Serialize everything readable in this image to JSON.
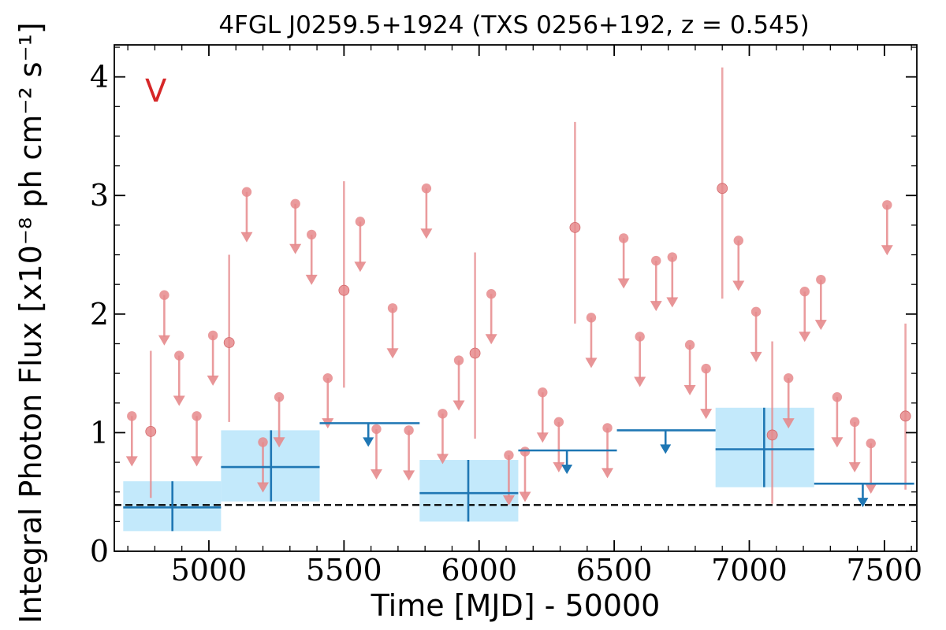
{
  "chart_data": {
    "type": "scatter",
    "title": "4FGL J0259.5+1924 (TXS 0256+192, z = 0.545)",
    "xlabel": "Time [MJD] - 50000",
    "ylabel": "Integral Photon Flux [x10⁻⁸ ph cm⁻² s⁻¹]",
    "panel_label": "V",
    "xlim": [
      4650,
      7620
    ],
    "ylim": [
      0,
      4.27
    ],
    "x_ticks": [
      5000,
      5500,
      6000,
      6500,
      7000,
      7500
    ],
    "y_ticks": [
      0,
      1,
      2,
      3,
      4
    ],
    "x_tick_labels": [
      "5000",
      "5500",
      "6000",
      "6500",
      "7000",
      "7500"
    ],
    "y_tick_labels": [
      "0",
      "1",
      "2",
      "3",
      "4"
    ],
    "reference_line": {
      "y": 0.39,
      "style": "dashed"
    },
    "colors": {
      "short_bins": "#e6898c",
      "long_bins": "#1f77b4",
      "long_bins_fill": "#c3e9fb",
      "panel_label": "#d62728",
      "reference_line": "#000000"
    },
    "short_bin_detections": [
      {
        "x": 4785,
        "y": 1.01,
        "ylo": 0.45,
        "yhi": 1.69
      },
      {
        "x": 5075,
        "y": 1.76,
        "ylo": 1.09,
        "yhi": 2.5
      },
      {
        "x": 5500,
        "y": 2.2,
        "ylo": 1.38,
        "yhi": 3.12
      },
      {
        "x": 5985,
        "y": 1.67,
        "ylo": 0.95,
        "yhi": 2.52
      },
      {
        "x": 6355,
        "y": 2.73,
        "ylo": 1.92,
        "yhi": 3.62
      },
      {
        "x": 6900,
        "y": 3.06,
        "ylo": 2.13,
        "yhi": 4.08
      },
      {
        "x": 7085,
        "y": 0.98,
        "ylo": 0.4,
        "yhi": 1.77
      },
      {
        "x": 7578,
        "y": 1.14,
        "ylo": 0.52,
        "yhi": 1.92
      }
    ],
    "short_bin_upper_limits": [
      {
        "x": 4715,
        "y": 1.14
      },
      {
        "x": 4835,
        "y": 2.16
      },
      {
        "x": 4890,
        "y": 1.65
      },
      {
        "x": 4955,
        "y": 1.14
      },
      {
        "x": 5015,
        "y": 1.82
      },
      {
        "x": 5140,
        "y": 3.03
      },
      {
        "x": 5200,
        "y": 0.92
      },
      {
        "x": 5260,
        "y": 1.3
      },
      {
        "x": 5320,
        "y": 2.93
      },
      {
        "x": 5380,
        "y": 2.67
      },
      {
        "x": 5440,
        "y": 1.46
      },
      {
        "x": 5560,
        "y": 2.78
      },
      {
        "x": 5620,
        "y": 1.03
      },
      {
        "x": 5680,
        "y": 2.05
      },
      {
        "x": 5740,
        "y": 1.02
      },
      {
        "x": 5805,
        "y": 3.06
      },
      {
        "x": 5865,
        "y": 1.16
      },
      {
        "x": 5925,
        "y": 1.61
      },
      {
        "x": 6045,
        "y": 2.17
      },
      {
        "x": 6110,
        "y": 0.81
      },
      {
        "x": 6170,
        "y": 0.84
      },
      {
        "x": 6235,
        "y": 1.34
      },
      {
        "x": 6295,
        "y": 1.09
      },
      {
        "x": 6415,
        "y": 1.97
      },
      {
        "x": 6475,
        "y": 1.04
      },
      {
        "x": 6535,
        "y": 2.64
      },
      {
        "x": 6595,
        "y": 1.81
      },
      {
        "x": 6655,
        "y": 2.45
      },
      {
        "x": 6715,
        "y": 2.48
      },
      {
        "x": 6780,
        "y": 1.74
      },
      {
        "x": 6840,
        "y": 1.54
      },
      {
        "x": 6960,
        "y": 2.62
      },
      {
        "x": 7025,
        "y": 2.02
      },
      {
        "x": 7145,
        "y": 1.46
      },
      {
        "x": 7205,
        "y": 2.19
      },
      {
        "x": 7265,
        "y": 2.29
      },
      {
        "x": 7325,
        "y": 1.3
      },
      {
        "x": 7390,
        "y": 1.09
      },
      {
        "x": 7450,
        "y": 0.91
      },
      {
        "x": 7510,
        "y": 2.92
      }
    ],
    "long_bin_detections": [
      {
        "x": 4865,
        "x0": 4683,
        "x1": 5045,
        "y": 0.37,
        "ylo": 0.17,
        "yhi": 0.59
      },
      {
        "x": 5230,
        "x0": 5045,
        "x1": 5410,
        "y": 0.71,
        "ylo": 0.42,
        "yhi": 1.02
      },
      {
        "x": 5960,
        "x0": 5780,
        "x1": 6145,
        "y": 0.49,
        "ylo": 0.25,
        "yhi": 0.77
      },
      {
        "x": 7055,
        "x0": 6875,
        "x1": 7240,
        "y": 0.86,
        "ylo": 0.54,
        "yhi": 1.21
      }
    ],
    "long_bin_upper_limits": [
      {
        "x": 5590,
        "x0": 5410,
        "x1": 5780,
        "y": 1.08
      },
      {
        "x": 6325,
        "x0": 6145,
        "x1": 6510,
        "y": 0.85
      },
      {
        "x": 6690,
        "x0": 6510,
        "x1": 6875,
        "y": 1.02
      },
      {
        "x": 7420,
        "x0": 7240,
        "x1": 7610,
        "y": 0.57
      }
    ]
  }
}
